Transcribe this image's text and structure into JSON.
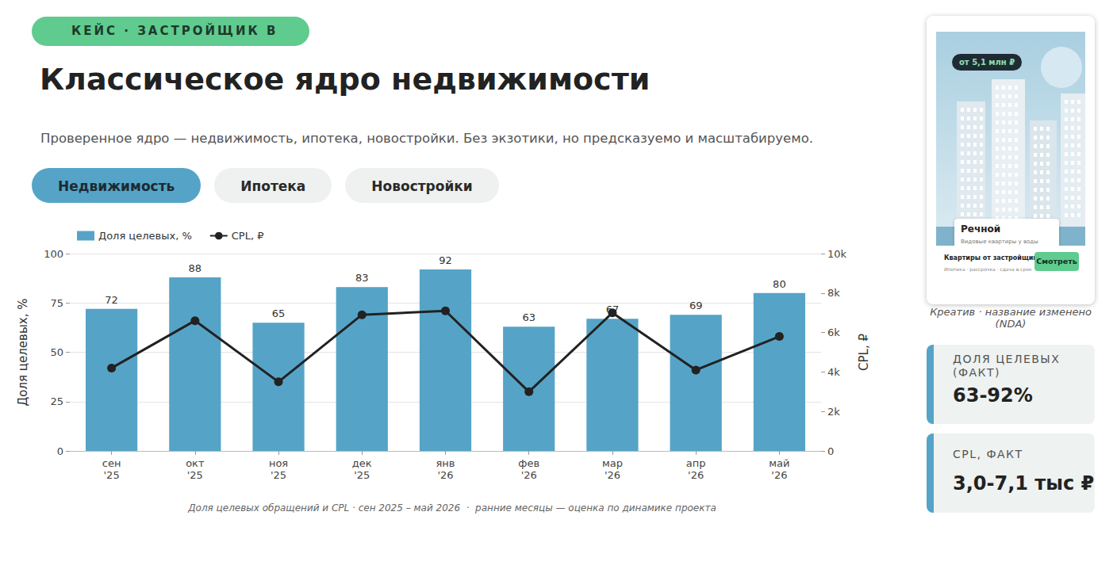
{
  "page": {
    "badge": "КЕЙС · ЗАСТРОЙЩИК В",
    "title": "Классическое ядро недвижимости",
    "subtitle": "Проверенное ядро — недвижимость, ипотека, новостройки. Без экзотики, но предсказуемо и масштабируемо.",
    "tabs": [
      {
        "label": "Недвижимость",
        "active": true
      },
      {
        "label": "Ипотека",
        "active": false
      },
      {
        "label": "Новостройки",
        "active": false
      }
    ],
    "caption": "Доля целевых обращений и CPL · сен 2025 – май 2026  ·  ранние месяцы — оценка по динамике проекта",
    "creative": {
      "price": "от 5,1 млн ₽",
      "name": "Речной",
      "tagline": "Видовые квартиры у воды",
      "headline": "Квартиры от застройщика",
      "details": "Ипотека · рассрочка · сдача в срок",
      "button": "Смотреть",
      "note": "Креатив · название изменено (NDA)"
    },
    "kpis": [
      {
        "label": "ДОЛЯ ЦЕЛЕВЫХ (ФАКТ)",
        "value": "63-92%"
      },
      {
        "label": "CPL, ФАКТ",
        "value": "3,0-7,1 тыс ₽"
      }
    ]
  },
  "chart_data": {
    "type": "bar",
    "categories": [
      "сен\n'25",
      "окт\n'25",
      "ноя\n'25",
      "дек\n'25",
      "янв\n'26",
      "фев\n'26",
      "мар\n'26",
      "апр\n'26",
      "май\n'26"
    ],
    "series": [
      {
        "name": "Доля целевых, %",
        "type": "bar",
        "color": "#55a4c7",
        "data_labels": true,
        "values": [
          72,
          88,
          65,
          83,
          92,
          63,
          67,
          69,
          80
        ]
      },
      {
        "name": "CPL, ₽",
        "type": "line",
        "axis": "y2",
        "color": "#222222",
        "marker": "circle",
        "line_style": "solid",
        "values": [
          4200,
          6600,
          3500,
          6900,
          7100,
          3000,
          7000,
          4100,
          5800
        ]
      }
    ],
    "ylabel": "Доля целевых, %",
    "y2label": "CPL, ₽",
    "ylim": [
      0,
      100
    ],
    "yticks": [
      0,
      25,
      50,
      75,
      100
    ],
    "y2lim": [
      0,
      10000
    ],
    "y2ticks": [
      0,
      {
        "value": 2000,
        "label": "2k"
      },
      {
        "value": 4000,
        "label": "4k"
      },
      {
        "value": 6000,
        "label": "6k"
      },
      {
        "value": 8000,
        "label": "8k"
      },
      {
        "value": 10000,
        "label": "10k"
      }
    ],
    "grid": true,
    "legend": "top-left"
  }
}
